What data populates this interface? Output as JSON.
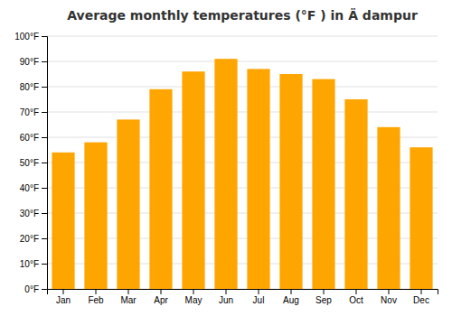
{
  "chart_data": {
    "type": "bar",
    "title": "Average monthly temperatures (°F ) in Ä dampur",
    "categories": [
      "Jan",
      "Feb",
      "Mar",
      "Apr",
      "May",
      "Jun",
      "Jul",
      "Aug",
      "Sep",
      "Oct",
      "Nov",
      "Dec"
    ],
    "values": [
      54,
      58,
      67,
      79,
      86,
      91,
      87,
      85,
      83,
      75,
      64,
      56
    ],
    "color": "#FFA500",
    "ylim": [
      0,
      100
    ],
    "yticks": [
      {
        "value": 0,
        "label": "0°F"
      },
      {
        "value": 10,
        "label": "10°F"
      },
      {
        "value": 20,
        "label": "20°F"
      },
      {
        "value": 30,
        "label": "30°F"
      },
      {
        "value": 40,
        "label": "40°F"
      },
      {
        "value": 50,
        "label": "50°F"
      },
      {
        "value": 60,
        "label": "60°F"
      },
      {
        "value": 70,
        "label": "70°F"
      },
      {
        "value": 80,
        "label": "80°F"
      },
      {
        "value": 90,
        "label": "90°F"
      },
      {
        "value": 100,
        "label": "100°F"
      }
    ],
    "grid": true
  }
}
